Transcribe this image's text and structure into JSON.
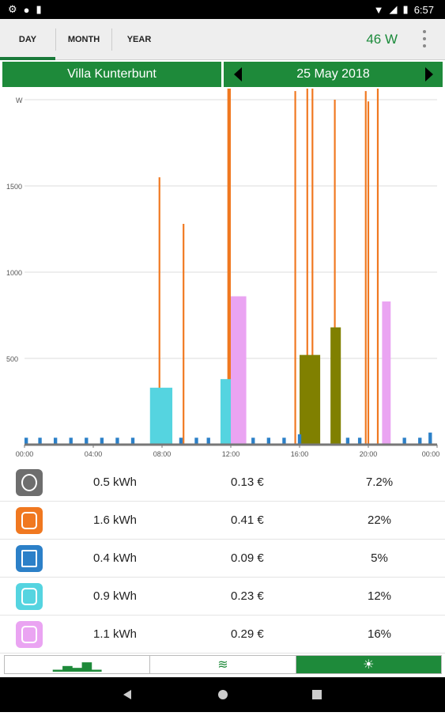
{
  "status": {
    "time": "6:57"
  },
  "tabs": [
    {
      "label": "DAY",
      "active": true
    },
    {
      "label": "MONTH",
      "active": false
    },
    {
      "label": "YEAR",
      "active": false
    }
  ],
  "header": {
    "current_power": "46 W",
    "location": "Villa Kunterbunt",
    "date": "25 May 2018"
  },
  "chart_data": {
    "type": "bar",
    "ylabel": "W",
    "ylim": [
      0,
      2000
    ],
    "yticks": [
      "500",
      "1000",
      "1500"
    ],
    "xticks": [
      "00:00",
      "04:00",
      "08:00",
      "12:00",
      "16:00",
      "20:00",
      "00:00"
    ],
    "xlim_hours": [
      0,
      24
    ],
    "series": [
      {
        "color": "#f07820",
        "segments": [
          [
            7.8,
            7.9,
            1550
          ],
          [
            9.2,
            9.3,
            1280
          ],
          [
            11.8,
            12.0,
            2180
          ],
          [
            15.7,
            15.8,
            2050
          ],
          [
            16.4,
            16.5,
            2100
          ],
          [
            16.7,
            16.8,
            2070
          ],
          [
            18.0,
            18.1,
            2000
          ],
          [
            19.8,
            19.9,
            2050
          ],
          [
            19.95,
            20.05,
            1990
          ],
          [
            20.5,
            20.6,
            2120
          ]
        ]
      },
      {
        "color": "#55d4e0",
        "segments": [
          [
            7.3,
            8.6,
            330
          ],
          [
            11.4,
            12.0,
            380
          ]
        ]
      },
      {
        "color": "#eaa4f2",
        "segments": [
          [
            12.0,
            12.9,
            860
          ],
          [
            20.8,
            21.3,
            830
          ]
        ]
      },
      {
        "color": "#808000",
        "segments": [
          [
            16.0,
            17.2,
            520
          ],
          [
            17.8,
            18.4,
            680
          ]
        ]
      },
      {
        "color": "#2c80c8",
        "segments": [
          [
            0.0,
            0.2,
            40
          ],
          [
            0.8,
            1.0,
            40
          ],
          [
            1.7,
            1.9,
            40
          ],
          [
            2.6,
            2.8,
            40
          ],
          [
            3.5,
            3.7,
            40
          ],
          [
            4.4,
            4.6,
            40
          ],
          [
            5.3,
            5.5,
            40
          ],
          [
            6.2,
            6.4,
            40
          ],
          [
            9.0,
            9.2,
            40
          ],
          [
            9.9,
            10.1,
            40
          ],
          [
            10.6,
            10.8,
            40
          ],
          [
            13.2,
            13.4,
            40
          ],
          [
            14.1,
            14.3,
            40
          ],
          [
            15.0,
            15.2,
            40
          ],
          [
            15.9,
            16.1,
            60
          ],
          [
            18.7,
            18.9,
            40
          ],
          [
            19.4,
            19.6,
            40
          ],
          [
            22.0,
            22.2,
            40
          ],
          [
            22.9,
            23.1,
            40
          ],
          [
            23.5,
            23.7,
            70
          ]
        ]
      }
    ]
  },
  "consumers": [
    {
      "kwh": "0.5 kWh",
      "cost": "0.13 €",
      "percent": "7.2%",
      "color": "#6e6e6e",
      "icon": "power-socket-icon"
    },
    {
      "kwh": "1.6 kWh",
      "cost": "0.41 €",
      "percent": "22%",
      "color": "#f07820",
      "icon": "phone-charger-icon"
    },
    {
      "kwh": "0.4 kWh",
      "cost": "0.09 €",
      "percent": "5%",
      "color": "#2c80c8",
      "icon": "fridge-icon"
    },
    {
      "kwh": "0.9 kWh",
      "cost": "0.23 €",
      "percent": "12%",
      "color": "#55d4e0",
      "icon": "washing-machine-icon"
    },
    {
      "kwh": "1.1 kWh",
      "cost": "0.29 €",
      "percent": "16%",
      "color": "#eaa4f2",
      "icon": "dryer-icon"
    }
  ],
  "bottom_nav": [
    {
      "icon": "bar-chart-icon",
      "active": false
    },
    {
      "icon": "waves-icon",
      "active": false
    },
    {
      "icon": "lightbulb-icon",
      "active": true
    }
  ]
}
